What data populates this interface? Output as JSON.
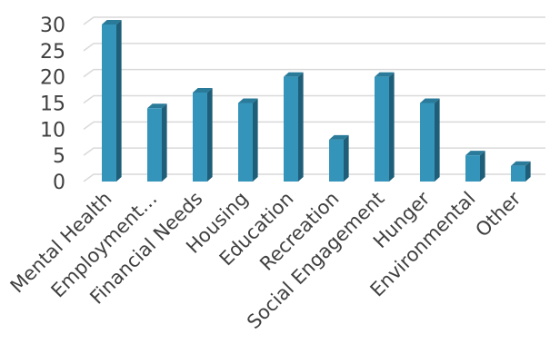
{
  "chart_data": {
    "type": "bar",
    "title": "",
    "xlabel": "",
    "ylabel": "",
    "categories": [
      "Mental Health",
      "Employment…",
      "Financial Needs",
      "Housing",
      "Education",
      "Recreation",
      "Social Engagement",
      "Hunger",
      "Environmental",
      "Other"
    ],
    "values": [
      30,
      14,
      17,
      15,
      20,
      8,
      20,
      15,
      5,
      3
    ],
    "ylim": [
      0,
      30
    ],
    "yticks": [
      0,
      5,
      10,
      15,
      20,
      25,
      30
    ],
    "grid": true,
    "legend": "none",
    "style": "3d-column",
    "colors": {
      "bar_front": "#3494BA",
      "bar_side": "#1F5E78",
      "bar_top": "#2A7A9A",
      "gridline": "#D9D9D9",
      "tick_text": "#404040"
    }
  }
}
